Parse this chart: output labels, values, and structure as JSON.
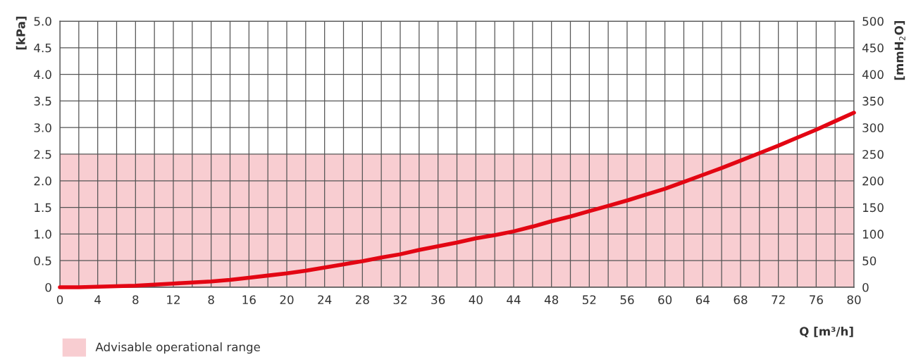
{
  "chart_data": {
    "type": "line",
    "xlabel": "Q [m³/h]",
    "ylabel": "[kPa]",
    "y2label": "[mmH$_{2}$O]",
    "categories": [
      "0",
      null,
      "4",
      null,
      "8",
      null,
      "12",
      null,
      "8",
      null,
      "16",
      null,
      "20",
      null,
      "24",
      null,
      "28",
      null,
      "32",
      null,
      "36",
      null,
      "40",
      null,
      "44",
      null,
      "48",
      null,
      "52",
      null,
      "56",
      null,
      "60",
      null,
      "64",
      null,
      "68",
      null,
      "72",
      null,
      "76",
      null,
      "80"
    ],
    "series": [
      {
        "color": "#e30613",
        "values": [
          0,
          0.0,
          0.01,
          0.02,
          0.03,
          0.05,
          0.07,
          0.09,
          0.11,
          0.14,
          0.18,
          0.22,
          0.26,
          0.31,
          0.37,
          0.43,
          0.49,
          0.56,
          0.62,
          0.7,
          0.77,
          0.84,
          0.92,
          0.98,
          1.05,
          1.14,
          1.24,
          1.33,
          1.43,
          1.53,
          1.63,
          1.74,
          1.85,
          1.98,
          2.11,
          2.24,
          2.38,
          2.52,
          2.66,
          2.81,
          2.96,
          3.12,
          3.28
        ]
      }
    ],
    "ylim": [
      0,
      5.0
    ],
    "yticks": [
      0,
      {
        "value": 0.5,
        "label": "0.5"
      },
      {
        "value": 1.0,
        "label": "1.0"
      },
      {
        "value": 1.5,
        "label": "1.5"
      },
      {
        "value": 2.0,
        "label": "2.0"
      },
      {
        "value": 2.5,
        "label": "2.5"
      },
      {
        "value": 3.0,
        "label": "3.0"
      },
      {
        "value": 3.5,
        "label": "3.5"
      },
      {
        "value": 4.0,
        "label": "4.0"
      },
      {
        "value": 4.5,
        "label": "4.5"
      },
      {
        "value": 5.0,
        "label": "5.0"
      }
    ],
    "y2lim": [
      0,
      500
    ],
    "y2ticks": [
      0,
      50,
      100,
      150,
      200,
      250,
      300,
      350,
      400,
      450,
      500
    ],
    "bands": [
      {
        "axis": "y",
        "from": 0,
        "to": 2.5,
        "label": "Advisable operational range",
        "color": "#f8cdd1"
      }
    ],
    "grid": true,
    "legend": "bottom left",
    "marker": "none",
    "line_style": "solid"
  }
}
